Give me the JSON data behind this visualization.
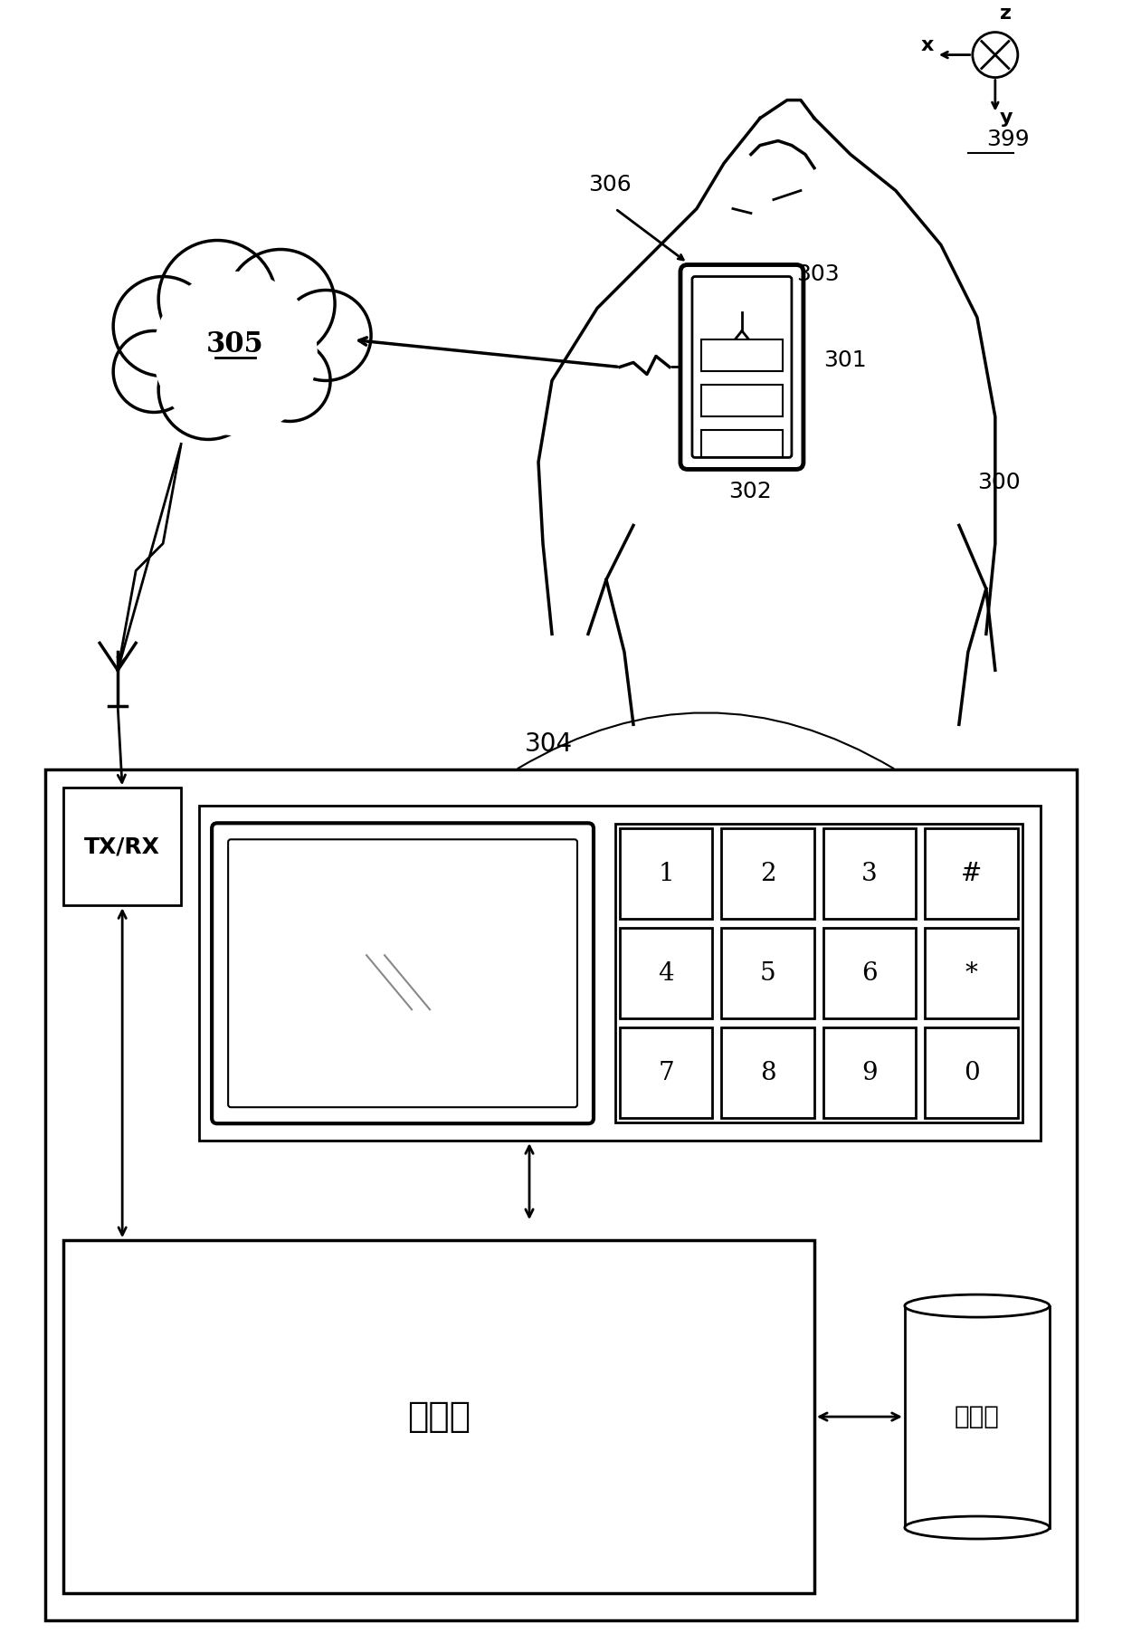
{
  "bg_color": "#ffffff",
  "line_color": "#000000",
  "label_306": "306",
  "label_305": "305",
  "label_303": "303",
  "label_302": "302",
  "label_301": "301",
  "label_300": "300",
  "label_304": "304",
  "label_399": "399",
  "label_txrx": "TX/RX",
  "label_processor": "处理器",
  "label_storage": "存储器",
  "keypad_labels": [
    "1",
    "2",
    "3",
    "#",
    "4",
    "5",
    "6",
    "*",
    "7",
    "8",
    "9",
    "0"
  ],
  "axis_x": "x",
  "axis_y": "y",
  "axis_z": "z"
}
